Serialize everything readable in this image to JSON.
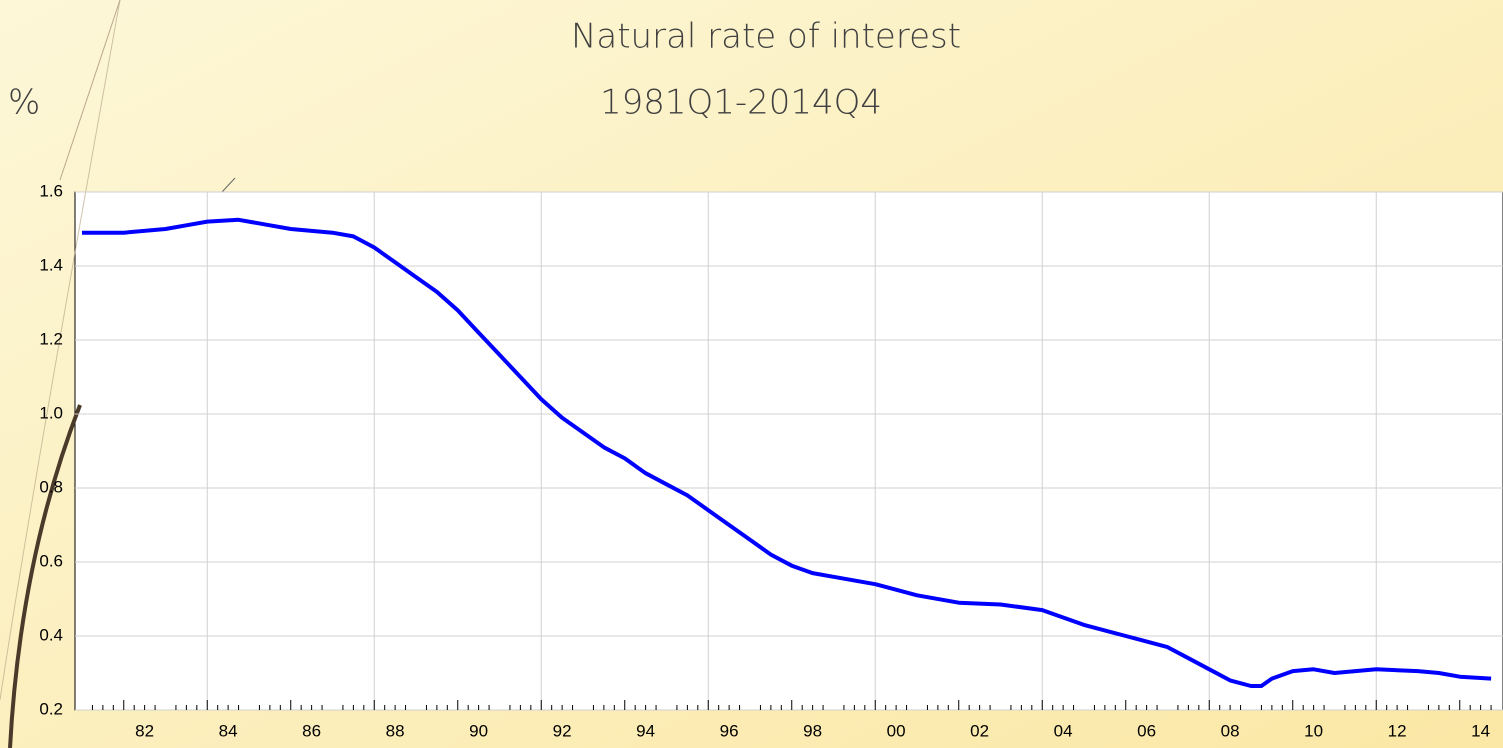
{
  "chart_data": {
    "type": "line",
    "title": "Natural rate of interest",
    "subtitle": "1981Q1-2014Q4",
    "y_label": "%",
    "x": [
      1981,
      1982,
      1983,
      1983.5,
      1984,
      1984.75,
      1985.5,
      1986,
      1987,
      1987.5,
      1988,
      1988.5,
      1989,
      1989.5,
      1990,
      1990.5,
      1991,
      1991.5,
      1992,
      1992.5,
      1993,
      1993.5,
      1994,
      1994.5,
      1995,
      1995.5,
      1996,
      1996.5,
      1997,
      1997.5,
      1998,
      1998.5,
      1999,
      2000,
      2001,
      2002,
      2003,
      2004,
      2004.5,
      2005,
      2006,
      2007,
      2007.5,
      2008,
      2008.5,
      2009,
      2009.25,
      2009.5,
      2010,
      2010.5,
      2011,
      2011.5,
      2012,
      2013,
      2013.5,
      2014,
      2014.75
    ],
    "series": [
      {
        "name": "Natural rate of interest",
        "color": "#0000ff",
        "values": [
          1.49,
          1.49,
          1.5,
          1.51,
          1.52,
          1.525,
          1.51,
          1.5,
          1.49,
          1.48,
          1.45,
          1.41,
          1.37,
          1.33,
          1.28,
          1.22,
          1.16,
          1.1,
          1.04,
          0.99,
          0.95,
          0.91,
          0.88,
          0.84,
          0.81,
          0.78,
          0.74,
          0.7,
          0.66,
          0.62,
          0.59,
          0.57,
          0.56,
          0.54,
          0.51,
          0.49,
          0.485,
          0.47,
          0.45,
          0.43,
          0.4,
          0.37,
          0.34,
          0.31,
          0.28,
          0.265,
          0.265,
          0.285,
          0.305,
          0.31,
          0.3,
          0.305,
          0.31,
          0.305,
          0.3,
          0.29,
          0.285
        ]
      }
    ],
    "xlim": [
      1981,
      2015
    ],
    "ylim": [
      0.2,
      1.6
    ],
    "xticks": [
      {
        "value": 1982,
        "label": "82"
      },
      {
        "value": 1984,
        "label": "84"
      },
      {
        "value": 1986,
        "label": "86"
      },
      {
        "value": 1988,
        "label": "88"
      },
      {
        "value": 1990,
        "label": "90"
      },
      {
        "value": 1992,
        "label": "92"
      },
      {
        "value": 1994,
        "label": "94"
      },
      {
        "value": 1996,
        "label": "96"
      },
      {
        "value": 1998,
        "label": "98"
      },
      {
        "value": 2000,
        "label": "00"
      },
      {
        "value": 2002,
        "label": "02"
      },
      {
        "value": 2004,
        "label": "04"
      },
      {
        "value": 2006,
        "label": "06"
      },
      {
        "value": 2008,
        "label": "08"
      },
      {
        "value": 2010,
        "label": "10"
      },
      {
        "value": 2012,
        "label": "12"
      },
      {
        "value": 2014,
        "label": "14"
      }
    ],
    "yticks": [
      0.2,
      0.4,
      0.6,
      0.8,
      {
        "value": 1.0,
        "label": "1.0"
      },
      1.2,
      1.4,
      1.6
    ],
    "grid": true
  }
}
